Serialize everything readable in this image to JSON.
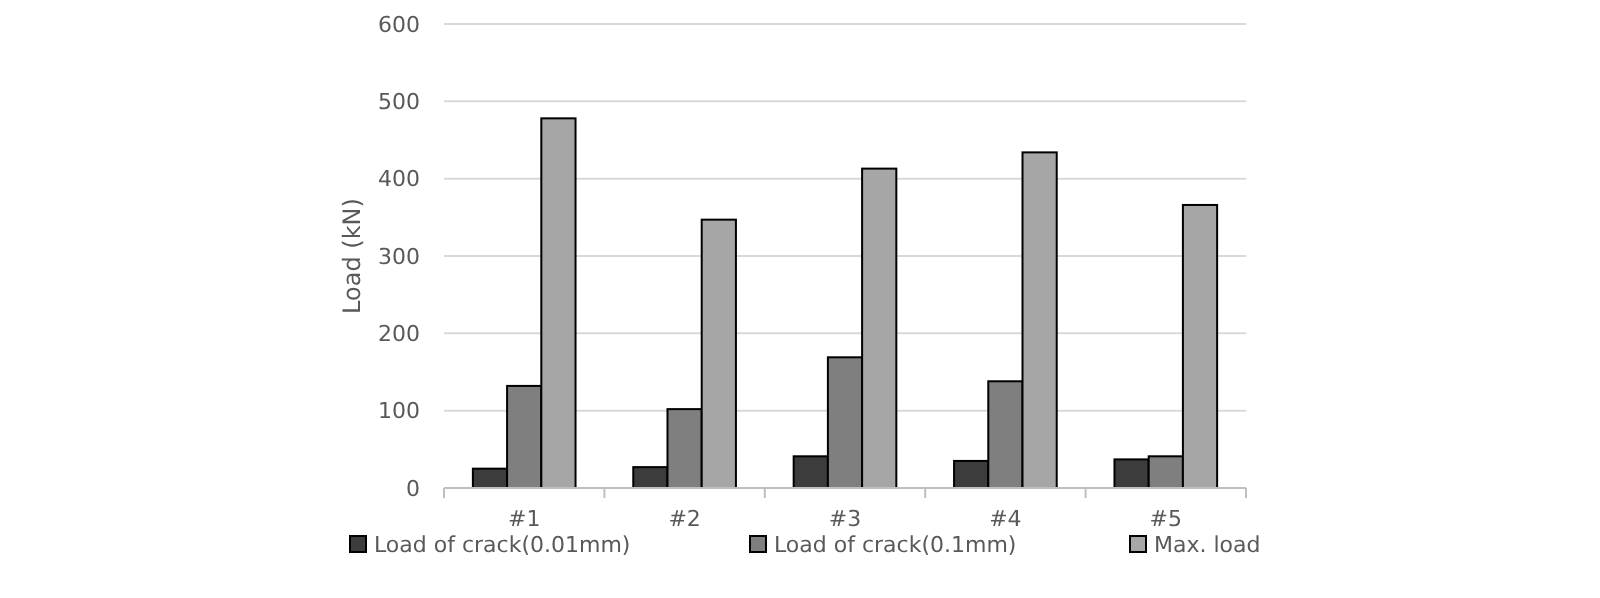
{
  "chart_data": {
    "type": "bar",
    "ylabel": "Load (kN)",
    "categories": [
      "#1",
      "#2",
      "#3",
      "#4",
      "#5"
    ],
    "series": [
      {
        "name": "Load of crack(0.01mm)",
        "color": "#3c3c3c",
        "values": [
          25,
          27,
          41,
          35,
          37
        ]
      },
      {
        "name": "Load of crack(0.1mm)",
        "color": "#7f7f7f",
        "values": [
          132,
          102,
          169,
          138,
          41
        ]
      },
      {
        "name": "Max. load",
        "color": "#a6a6a6",
        "values": [
          478,
          347,
          413,
          434,
          366
        ]
      }
    ],
    "ylim": [
      0,
      600
    ],
    "yticks": [
      0,
      100,
      200,
      300,
      400,
      500,
      600
    ],
    "grid": "y",
    "legend": "bottom"
  }
}
